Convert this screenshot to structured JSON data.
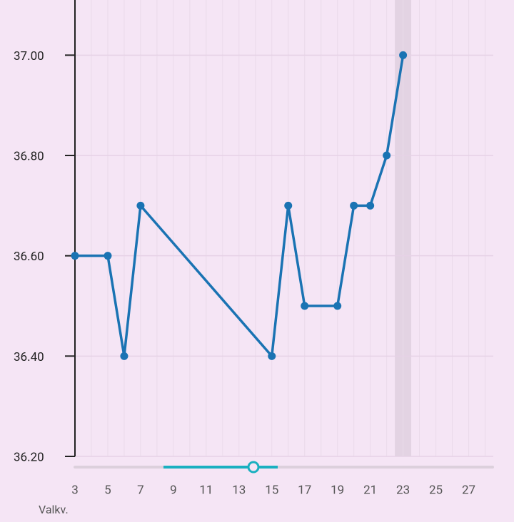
{
  "chart_data": {
    "type": "line",
    "x_label": "Valkv.",
    "x": [
      3,
      5,
      6,
      7,
      15,
      16,
      17,
      19,
      20,
      21,
      22,
      23
    ],
    "series": [
      {
        "color": "#1a73b3",
        "values": [
          36.6,
          36.6,
          36.4,
          36.7,
          36.4,
          36.7,
          36.5,
          36.5,
          36.7,
          36.7,
          36.8,
          37.0
        ]
      }
    ],
    "xlim": [
      3,
      28.5
    ],
    "xticks": [
      3,
      5,
      7,
      9,
      11,
      13,
      15,
      17,
      19,
      21,
      23,
      25,
      27
    ],
    "ylim": [
      36.2,
      37.11
    ],
    "yticks": [
      {
        "value": 36.2,
        "label": "36.20"
      },
      {
        "value": 36.4,
        "label": "36.40"
      },
      {
        "value": 36.6,
        "label": "36.60"
      },
      {
        "value": 36.8,
        "label": "36.80"
      },
      {
        "value": 37.0,
        "label": "37.00"
      }
    ],
    "highlight_x": 23,
    "grid": true
  }
}
